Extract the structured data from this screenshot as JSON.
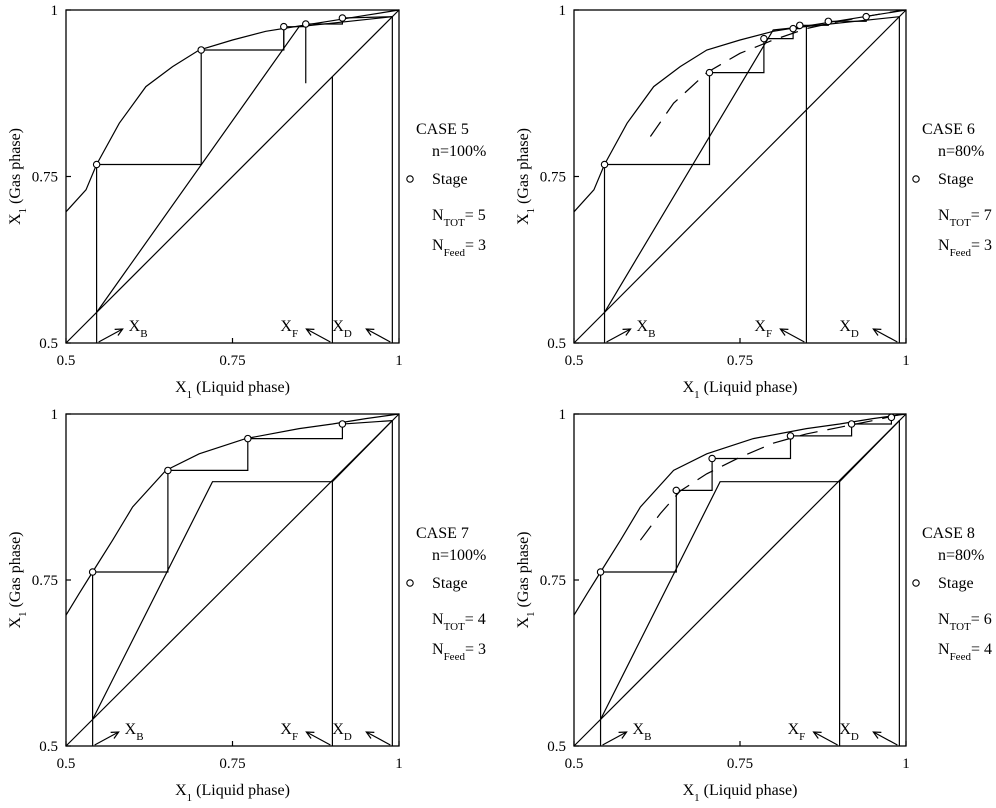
{
  "axis_text": {
    "xlabel_main": "X",
    "xlabel_sub": "1",
    "xlabel_rest": " (Liquid phase)",
    "ylabel_main": "X",
    "ylabel_sub": "1",
    "ylabel_rest": " (Gas phase)",
    "xticks": [
      "0.5",
      "0.75",
      "1"
    ],
    "yticks": [
      "0.5",
      "0.75",
      "1"
    ],
    "xb_main": "X",
    "xb_sub": "B",
    "xf_main": "X",
    "xf_sub": "F",
    "xd_main": "X",
    "xd_sub": "D",
    "stage_label": "Stage",
    "ntot_main": "N",
    "ntot_sub": "TOT",
    "nfeed_main": "N",
    "nfeed_sub": "Feed"
  },
  "chart_data": [
    {
      "type": "line",
      "case": "CASE 5",
      "efficiency": "n=100%",
      "ntot": "= 5",
      "nfeed": "= 3",
      "xlim": [
        0.5,
        1
      ],
      "ylim": [
        0.5,
        1
      ],
      "xB": 0.546,
      "xF": 0.9,
      "xD": 0.99,
      "equilibrium_curve": [
        [
          0.5,
          0.697
        ],
        [
          0.53,
          0.73
        ],
        [
          0.546,
          0.768
        ],
        [
          0.58,
          0.83
        ],
        [
          0.62,
          0.885
        ],
        [
          0.66,
          0.915
        ],
        [
          0.7,
          0.94
        ],
        [
          0.75,
          0.955
        ],
        [
          0.8,
          0.968
        ],
        [
          0.85,
          0.976
        ],
        [
          0.9,
          0.984
        ],
        [
          0.95,
          0.992
        ],
        [
          1,
          1
        ]
      ],
      "pseudo_equilibrium_curve": [],
      "operating_line": [
        [
          0.546,
          0.546
        ],
        [
          0.85,
          0.975
        ],
        [
          0.99,
          0.99
        ]
      ],
      "feed_vertical_top": 0.9,
      "stages": [
        [
          0.546,
          0.768
        ],
        [
          0.703,
          0.94
        ],
        [
          0.827,
          0.975
        ],
        [
          0.86,
          0.979
        ],
        [
          0.915,
          0.988
        ]
      ],
      "staircase": [
        [
          0.546,
          0.546
        ],
        [
          0.546,
          0.768
        ],
        [
          0.703,
          0.768
        ],
        [
          0.703,
          0.94
        ],
        [
          0.827,
          0.94
        ],
        [
          0.827,
          0.975
        ],
        [
          0.86,
          0.975
        ],
        [
          0.86,
          0.979
        ],
        [
          0.915,
          0.979
        ],
        [
          0.915,
          0.988
        ],
        [
          0.99,
          0.99
        ]
      ],
      "verticals": [
        [
          0.827,
          0.94,
          0.975
        ],
        [
          0.86,
          0.89,
          0.979
        ]
      ]
    },
    {
      "type": "line",
      "case": "CASE 6",
      "efficiency": "n=80%",
      "ntot": "= 7",
      "nfeed": "= 3",
      "xlim": [
        0.5,
        1
      ],
      "ylim": [
        0.5,
        1
      ],
      "xB": 0.546,
      "xF": 0.85,
      "xD": 0.99,
      "equilibrium_curve": [
        [
          0.5,
          0.697
        ],
        [
          0.53,
          0.73
        ],
        [
          0.546,
          0.768
        ],
        [
          0.58,
          0.83
        ],
        [
          0.62,
          0.885
        ],
        [
          0.66,
          0.915
        ],
        [
          0.7,
          0.94
        ],
        [
          0.75,
          0.955
        ],
        [
          0.8,
          0.968
        ],
        [
          0.85,
          0.976
        ],
        [
          0.9,
          0.984
        ],
        [
          0.95,
          0.992
        ],
        [
          1,
          1
        ]
      ],
      "pseudo_equilibrium_curve": [
        [
          0.615,
          0.81
        ],
        [
          0.65,
          0.86
        ],
        [
          0.7,
          0.906
        ],
        [
          0.75,
          0.935
        ],
        [
          0.8,
          0.955
        ],
        [
          0.85,
          0.972
        ],
        [
          0.9,
          0.983
        ],
        [
          0.95,
          0.992
        ],
        [
          0.99,
          0.999
        ]
      ],
      "operating_line": [
        [
          0.546,
          0.546
        ],
        [
          0.8,
          0.97
        ],
        [
          0.99,
          0.99
        ]
      ],
      "feed_vertical_top": 0.975,
      "stages": [
        [
          0.546,
          0.768
        ],
        [
          0.704,
          0.906
        ],
        [
          0.786,
          0.957
        ],
        [
          0.83,
          0.972
        ],
        [
          0.84,
          0.977
        ],
        [
          0.883,
          0.983
        ],
        [
          0.94,
          0.99
        ]
      ],
      "staircase": [
        [
          0.546,
          0.546
        ],
        [
          0.546,
          0.768
        ],
        [
          0.704,
          0.768
        ],
        [
          0.704,
          0.906
        ],
        [
          0.786,
          0.906
        ],
        [
          0.786,
          0.957
        ],
        [
          0.83,
          0.957
        ],
        [
          0.83,
          0.972
        ],
        [
          0.84,
          0.972
        ],
        [
          0.84,
          0.977
        ],
        [
          0.883,
          0.977
        ],
        [
          0.883,
          0.983
        ],
        [
          0.94,
          0.983
        ],
        [
          0.94,
          0.99
        ]
      ],
      "verticals": []
    },
    {
      "type": "line",
      "case": "CASE 7",
      "efficiency": "n=100%",
      "ntot": "= 4",
      "nfeed": "= 3",
      "xlim": [
        0.5,
        1
      ],
      "ylim": [
        0.5,
        1
      ],
      "xB": 0.54,
      "xF": 0.9,
      "xD": 0.99,
      "equilibrium_curve": [
        [
          0.5,
          0.697
        ],
        [
          0.52,
          0.73
        ],
        [
          0.54,
          0.762
        ],
        [
          0.57,
          0.81
        ],
        [
          0.6,
          0.86
        ],
        [
          0.65,
          0.915
        ],
        [
          0.7,
          0.94
        ],
        [
          0.77,
          0.963
        ],
        [
          0.85,
          0.978
        ],
        [
          0.9,
          0.985
        ],
        [
          0.95,
          0.993
        ],
        [
          1,
          1
        ]
      ],
      "pseudo_equilibrium_curve": [],
      "operating_line": [
        [
          0.54,
          0.54
        ],
        [
          0.72,
          0.898
        ],
        [
          0.9,
          0.898
        ],
        [
          0.99,
          0.99
        ]
      ],
      "feed_vertical_top": 0.898,
      "stages": [
        [
          0.54,
          0.762
        ],
        [
          0.653,
          0.915
        ],
        [
          0.773,
          0.963
        ],
        [
          0.915,
          0.985
        ]
      ],
      "staircase": [
        [
          0.54,
          0.54
        ],
        [
          0.54,
          0.762
        ],
        [
          0.653,
          0.762
        ],
        [
          0.653,
          0.915
        ],
        [
          0.773,
          0.915
        ],
        [
          0.773,
          0.963
        ],
        [
          0.915,
          0.963
        ],
        [
          0.915,
          0.985
        ],
        [
          0.99,
          0.99
        ]
      ],
      "verticals": []
    },
    {
      "type": "line",
      "case": "CASE 8",
      "efficiency": "n=80%",
      "ntot": "= 6",
      "nfeed": "= 4",
      "xlim": [
        0.5,
        1
      ],
      "ylim": [
        0.5,
        1
      ],
      "xB": 0.54,
      "xF": 0.9,
      "xD": 0.99,
      "equilibrium_curve": [
        [
          0.5,
          0.697
        ],
        [
          0.52,
          0.73
        ],
        [
          0.54,
          0.762
        ],
        [
          0.57,
          0.81
        ],
        [
          0.6,
          0.86
        ],
        [
          0.65,
          0.915
        ],
        [
          0.7,
          0.94
        ],
        [
          0.77,
          0.963
        ],
        [
          0.85,
          0.978
        ],
        [
          0.9,
          0.985
        ],
        [
          0.95,
          0.993
        ],
        [
          1,
          1
        ]
      ],
      "pseudo_equilibrium_curve": [
        [
          0.6,
          0.81
        ],
        [
          0.63,
          0.85
        ],
        [
          0.66,
          0.884
        ],
        [
          0.7,
          0.91
        ],
        [
          0.75,
          0.935
        ],
        [
          0.8,
          0.956
        ],
        [
          0.85,
          0.97
        ],
        [
          0.9,
          0.98
        ],
        [
          0.95,
          0.99
        ],
        [
          0.99,
          0.999
        ]
      ],
      "operating_line": [
        [
          0.54,
          0.54
        ],
        [
          0.72,
          0.898
        ],
        [
          0.9,
          0.898
        ],
        [
          0.99,
          0.99
        ]
      ],
      "feed_vertical_top": 0.898,
      "stages": [
        [
          0.54,
          0.762
        ],
        [
          0.654,
          0.885
        ],
        [
          0.708,
          0.933
        ],
        [
          0.826,
          0.967
        ],
        [
          0.918,
          0.985
        ],
        [
          0.978,
          0.995
        ]
      ],
      "staircase": [
        [
          0.54,
          0.54
        ],
        [
          0.54,
          0.762
        ],
        [
          0.654,
          0.762
        ],
        [
          0.654,
          0.885
        ],
        [
          0.708,
          0.885
        ],
        [
          0.708,
          0.933
        ],
        [
          0.826,
          0.933
        ],
        [
          0.826,
          0.967
        ],
        [
          0.918,
          0.967
        ],
        [
          0.918,
          0.985
        ],
        [
          0.978,
          0.985
        ],
        [
          0.978,
          0.995
        ]
      ],
      "verticals": []
    }
  ]
}
